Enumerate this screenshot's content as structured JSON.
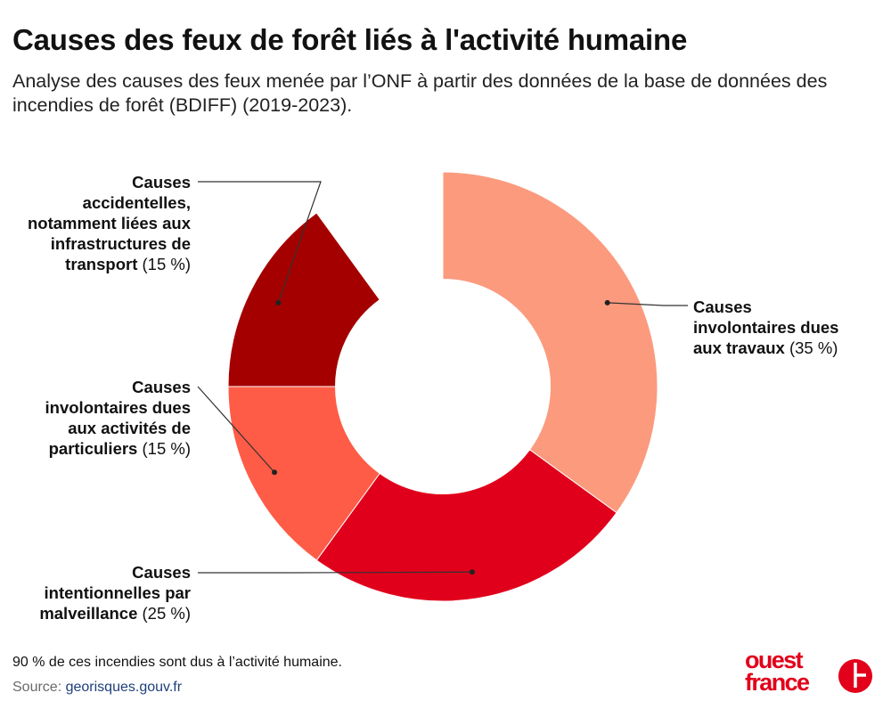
{
  "title": "Causes des feux de forêt liés à l'activité humaine",
  "subtitle": "Analyse des causes des feux menée par l’ONF à partir des données de la base de données des incendies de forêt (BDIFF) (2019-2023).",
  "chart_data": {
    "type": "pie",
    "title": "Causes des feux de forêt liés à l'activité humaine",
    "unit": "%",
    "hole_ratio": 0.5,
    "slices": [
      {
        "label_bold": "Causes involontaires dues aux travaux",
        "percent_text": "(35 %)",
        "value": 35,
        "color": "#fc9a7e",
        "side": "right"
      },
      {
        "label_bold": "Causes intentionnelles par malveillance",
        "percent_text": "(25 %)",
        "value": 25,
        "color": "#e0001b",
        "side": "left"
      },
      {
        "label_bold": "Causes involontaires dues aux activités de particuliers",
        "percent_text": "(15 %)",
        "value": 15,
        "color": "#fe5c47",
        "side": "left"
      },
      {
        "label_bold": "Causes accidentelles, notamment liées aux infrastructures de transport",
        "percent_text": "(15 %)",
        "value": 15,
        "color": "#a40000",
        "side": "left"
      }
    ]
  },
  "labels": {
    "accidental": {
      "lines": [
        "Causes",
        "accidentelles,",
        "notamment liées aux",
        "infrastructures de",
        "transport"
      ],
      "pct": "(15 %)"
    },
    "particuliers": {
      "lines": [
        "Causes",
        "involontaires dues",
        "aux activités de",
        "particuliers"
      ],
      "pct": "(15 %)"
    },
    "malveillance": {
      "lines": [
        "Causes",
        "intentionnelles par",
        "malveillance"
      ],
      "pct": "(25 %)"
    },
    "travaux": {
      "lines": [
        "Causes",
        "involontaires dues",
        "aux travaux"
      ],
      "pct": "(35 %)"
    }
  },
  "footnote": "90 % de ces incendies sont dus à l’activité humaine.",
  "source": {
    "prefix": "Source: ",
    "link": "georisques.gouv.fr"
  },
  "logo": {
    "line1": "ouest",
    "line2": "france",
    "color": "#e2001a"
  }
}
